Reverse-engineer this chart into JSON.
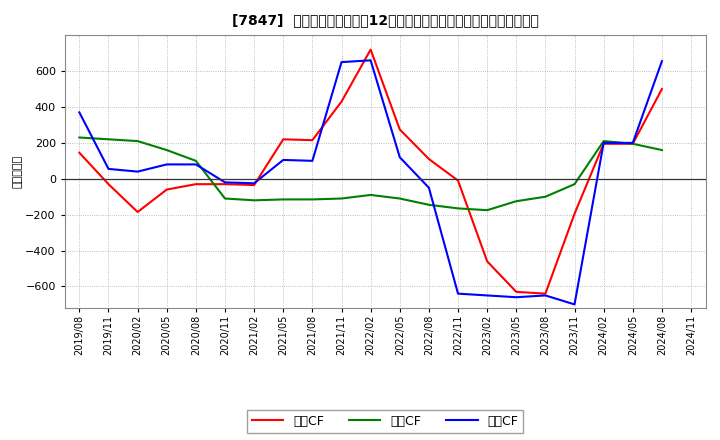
{
  "title": "[7847]  キャッシュフローの12か月移動合計の対前年同期増減額の推移",
  "ylabel": "（百万円）",
  "background_color": "#ffffff",
  "plot_background": "#ffffff",
  "grid_color": "#aaaaaa",
  "ylim": [
    -720,
    800
  ],
  "yticks": [
    -600,
    -400,
    -200,
    0,
    200,
    400,
    600
  ],
  "x_labels": [
    "2019/08",
    "2019/11",
    "2020/02",
    "2020/05",
    "2020/08",
    "2020/11",
    "2021/02",
    "2021/05",
    "2021/08",
    "2021/11",
    "2022/02",
    "2022/05",
    "2022/08",
    "2022/11",
    "2023/02",
    "2023/05",
    "2023/08",
    "2023/11",
    "2024/02",
    "2024/05",
    "2024/08",
    "2024/11"
  ],
  "series_order": [
    "営業CF",
    "投賃CF",
    "フリCF"
  ],
  "series": {
    "営業CF": {
      "color": "#ff0000",
      "values": [
        145,
        -30,
        -185,
        -60,
        -30,
        -30,
        -35,
        220,
        215,
        430,
        720,
        275,
        110,
        -10,
        -460,
        -630,
        -640,
        -195,
        195,
        195,
        500,
        null
      ]
    },
    "投賃CF": {
      "color": "#008000",
      "values": [
        230,
        220,
        210,
        160,
        100,
        -110,
        -120,
        -115,
        -115,
        -110,
        -90,
        -110,
        -145,
        -165,
        -175,
        -125,
        -100,
        -30,
        210,
        195,
        160,
        null
      ]
    },
    "フリCF": {
      "color": "#0000ff",
      "values": [
        370,
        55,
        40,
        80,
        80,
        -20,
        -25,
        105,
        100,
        650,
        660,
        120,
        -50,
        -640,
        -650,
        -660,
        -650,
        -700,
        200,
        200,
        655,
        null
      ]
    }
  },
  "legend_labels": [
    "営業CF",
    "投賃CF",
    "フリCF"
  ],
  "legend_colors": [
    "#ff0000",
    "#008000",
    "#0000ff"
  ]
}
